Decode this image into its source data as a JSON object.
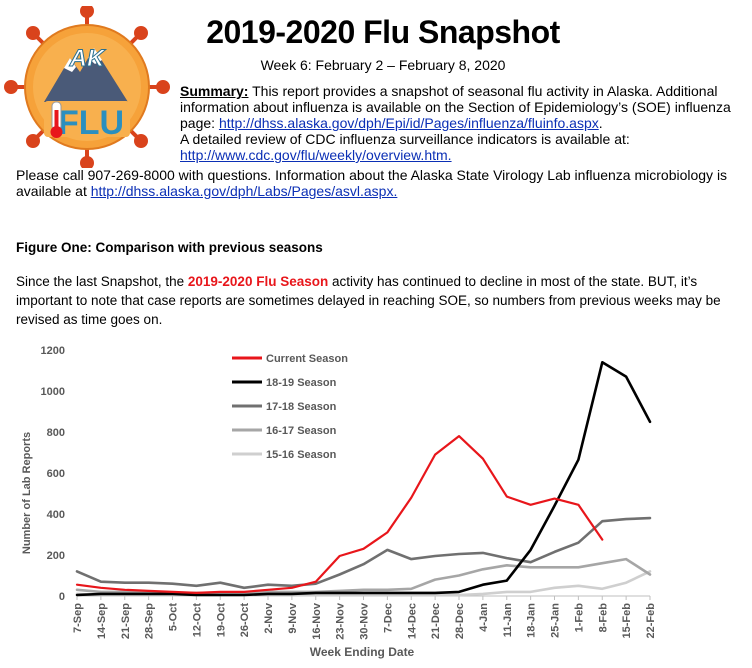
{
  "header": {
    "title": "2019-2020 Flu Snapshot",
    "subtitle": "Week 6: February 2 – February 8, 2020",
    "logo": {
      "top_text": "AK",
      "bottom_text": "FLU"
    }
  },
  "summary": {
    "label": "Summary:",
    "text1": "This report provides a snapshot of seasonal flu activity in Alaska. Additional information about influenza is available on the Section of Epidemiology’s (SOE) influenza page:",
    "link1": "http://dhss.alaska.gov/dph/Epi/id/Pages/influenza/fluinfo.aspx",
    "text1_end": ".",
    "text2": "A detailed review of CDC influenza surveillance indicators is available at:",
    "link2": "http://www.cdc.gov/flu/weekly/overview.htm."
  },
  "contact": {
    "text": "Please call 907-269-8000 with questions. Information about the Alaska State Virology Lab influenza microbiology is available at",
    "link": "http://dhss.alaska.gov/dph/Labs/Pages/asvl.aspx."
  },
  "figure": {
    "heading": "Figure One: Comparison with previous seasons",
    "para_pre": "Since the last Snapshot, the",
    "para_highlight": "2019-2020 Flu Season",
    "para_post": "activity has continued to decline in most of the state.  BUT, it’s important to note that case reports are sometimes delayed in reaching SOE, so numbers from previous weeks may be revised as time goes on."
  },
  "chart_data": {
    "type": "line",
    "title": "",
    "xlabel": "Week Ending Date",
    "ylabel": "Number of Lab Reports",
    "ylim": [
      0,
      1200
    ],
    "yticks": [
      0,
      200,
      400,
      600,
      800,
      1000,
      1200
    ],
    "grid": false,
    "legend_position": "top-left",
    "categories": [
      "7-Sep",
      "14-Sep",
      "21-Sep",
      "28-Sep",
      "5-Oct",
      "12-Oct",
      "19-Oct",
      "26-Oct",
      "2-Nov",
      "9-Nov",
      "16-Nov",
      "23-Nov",
      "30-Nov",
      "7-Dec",
      "14-Dec",
      "21-Dec",
      "28-Dec",
      "4-Jan",
      "11-Jan",
      "18-Jan",
      "25-Jan",
      "1-Feb",
      "8-Feb",
      "15-Feb",
      "22-Feb"
    ],
    "series": [
      {
        "name": "Current Season",
        "color": "#e8161b",
        "width": 2.2,
        "values": [
          55,
          40,
          30,
          25,
          20,
          15,
          20,
          20,
          30,
          40,
          70,
          195,
          230,
          310,
          480,
          690,
          780,
          670,
          485,
          445,
          475,
          445,
          275,
          null,
          null
        ]
      },
      {
        "name": "18-19 Season",
        "color": "#000000",
        "width": 2.6,
        "values": [
          5,
          10,
          10,
          10,
          10,
          5,
          5,
          5,
          10,
          10,
          15,
          15,
          15,
          15,
          15,
          15,
          20,
          55,
          75,
          225,
          440,
          665,
          1140,
          1070,
          850
        ]
      },
      {
        "name": "17-18 Season",
        "color": "#707070",
        "width": 2.6,
        "values": [
          120,
          70,
          65,
          65,
          60,
          50,
          65,
          40,
          55,
          50,
          60,
          105,
          155,
          225,
          180,
          195,
          205,
          210,
          185,
          165,
          215,
          260,
          365,
          375,
          380
        ]
      },
      {
        "name": "16-17 Season",
        "color": "#a6a6a6",
        "width": 2.6,
        "values": [
          30,
          20,
          20,
          20,
          15,
          15,
          15,
          15,
          20,
          20,
          20,
          25,
          30,
          30,
          35,
          80,
          100,
          130,
          150,
          140,
          140,
          140,
          160,
          180,
          105
        ]
      },
      {
        "name": "15-16 Season",
        "color": "#cfcfcf",
        "width": 2.6,
        "values": [
          10,
          5,
          5,
          5,
          5,
          5,
          5,
          5,
          5,
          5,
          5,
          5,
          5,
          5,
          5,
          5,
          5,
          10,
          20,
          20,
          40,
          50,
          35,
          65,
          120
        ]
      }
    ]
  }
}
